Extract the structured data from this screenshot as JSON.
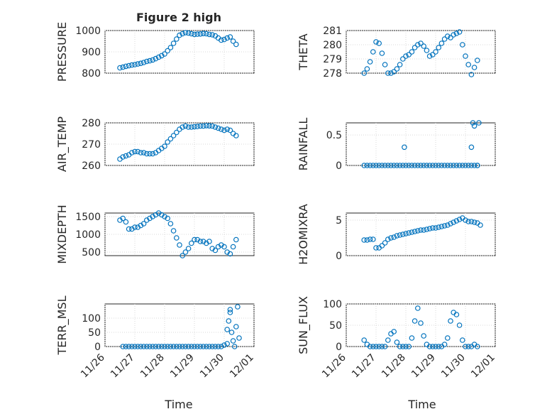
{
  "figure": {
    "title": "Figure 2 high",
    "xlabel": "Time"
  },
  "chart_data": [
    {
      "type": "scatter",
      "ylabel": "PRESSURE",
      "ylim": [
        800,
        1000
      ],
      "yticks": [
        "800",
        "900",
        "1000"
      ],
      "xlim": [
        0,
        5
      ],
      "xticks": [
        "11/26",
        "11/27",
        "11/28",
        "11/29",
        "11/30",
        "12/01"
      ],
      "grid": "on",
      "series": [
        {
          "x": [
            0.5,
            0.6,
            0.7,
            0.8,
            0.9,
            1.0,
            1.1,
            1.2,
            1.3,
            1.4,
            1.5,
            1.6,
            1.7,
            1.8,
            1.9,
            2.0,
            2.1,
            2.2,
            2.3,
            2.4,
            2.5,
            2.6,
            2.7,
            2.8,
            2.9,
            3.0,
            3.1,
            3.2,
            3.3,
            3.4,
            3.5,
            3.6,
            3.7,
            3.8,
            3.9,
            4.0,
            4.1,
            4.2,
            4.3,
            4.4
          ],
          "y": [
            825,
            828,
            832,
            835,
            838,
            840,
            843,
            846,
            850,
            855,
            858,
            862,
            868,
            875,
            882,
            890,
            905,
            920,
            940,
            960,
            978,
            985,
            990,
            988,
            985,
            982,
            983,
            984,
            986,
            985,
            982,
            980,
            975,
            965,
            955,
            958,
            965,
            970,
            950,
            935
          ]
        }
      ]
    },
    {
      "type": "scatter",
      "ylabel": "THETA",
      "ylim": [
        278,
        281
      ],
      "yticks": [
        "278",
        "279",
        "280",
        "281"
      ],
      "xlim": [
        0,
        5
      ],
      "xticks": [
        "11/26",
        "11/27",
        "11/28",
        "11/29",
        "11/30",
        "12/01"
      ],
      "grid": "on",
      "series": [
        {
          "x": [
            0.6,
            0.7,
            0.8,
            0.9,
            1.0,
            1.1,
            1.2,
            1.3,
            1.4,
            1.5,
            1.6,
            1.7,
            1.8,
            1.9,
            2.0,
            2.1,
            2.2,
            2.3,
            2.4,
            2.5,
            2.6,
            2.7,
            2.8,
            2.9,
            3.0,
            3.1,
            3.2,
            3.3,
            3.4,
            3.5,
            3.6,
            3.7,
            3.8,
            3.9,
            4.0,
            4.1,
            4.2,
            4.3,
            4.4
          ],
          "y": [
            278.0,
            278.3,
            278.8,
            279.5,
            280.2,
            280.1,
            279.4,
            278.6,
            278.0,
            278.0,
            278.1,
            278.3,
            278.6,
            279.0,
            279.2,
            279.3,
            279.5,
            279.8,
            280.0,
            280.1,
            279.9,
            279.6,
            279.2,
            279.3,
            279.5,
            279.8,
            280.1,
            280.4,
            280.6,
            280.5,
            280.7,
            280.8,
            280.9,
            280.0,
            279.2,
            278.6,
            277.9,
            278.4,
            278.9
          ]
        }
      ]
    },
    {
      "type": "scatter",
      "ylabel": "AIR_TEMP",
      "ylim": [
        260,
        280
      ],
      "yticks": [
        "260",
        "270",
        "280"
      ],
      "xlim": [
        0,
        5
      ],
      "xticks": [
        "11/26",
        "11/27",
        "11/28",
        "11/29",
        "11/30",
        "12/01"
      ],
      "grid": "on",
      "series": [
        {
          "x": [
            0.5,
            0.6,
            0.7,
            0.8,
            0.9,
            1.0,
            1.1,
            1.2,
            1.3,
            1.4,
            1.5,
            1.6,
            1.7,
            1.8,
            1.9,
            2.0,
            2.1,
            2.2,
            2.3,
            2.4,
            2.5,
            2.6,
            2.7,
            2.8,
            2.9,
            3.0,
            3.1,
            3.2,
            3.3,
            3.4,
            3.5,
            3.6,
            3.7,
            3.8,
            3.9,
            4.0,
            4.1,
            4.2,
            4.3,
            4.4
          ],
          "y": [
            263,
            264,
            264.5,
            265,
            266,
            266.5,
            266.5,
            266,
            266,
            265.5,
            265.5,
            265.5,
            266,
            267,
            268,
            269,
            271,
            272.5,
            274,
            275.5,
            277,
            278,
            278.5,
            278,
            278,
            278.2,
            278.3,
            278.5,
            278.5,
            278.7,
            278.6,
            278.5,
            278,
            277.5,
            277,
            276.5,
            277,
            276.5,
            275,
            274
          ]
        }
      ]
    },
    {
      "type": "scatter",
      "ylabel": "RAINFALL",
      "ylim": [
        0,
        0.7
      ],
      "yticks": [
        "0",
        "0.5"
      ],
      "xlim": [
        0,
        5
      ],
      "xticks": [
        "11/26",
        "11/27",
        "11/28",
        "11/29",
        "11/30",
        "12/01"
      ],
      "grid": "on",
      "series": [
        {
          "x": [
            0.6,
            0.7,
            0.8,
            0.9,
            1.0,
            1.1,
            1.2,
            1.3,
            1.4,
            1.5,
            1.6,
            1.7,
            1.8,
            1.9,
            2.0,
            2.1,
            2.2,
            2.3,
            2.4,
            2.5,
            2.6,
            2.7,
            2.8,
            2.9,
            3.0,
            3.1,
            3.2,
            3.3,
            3.4,
            3.5,
            3.6,
            3.7,
            3.8,
            3.9,
            4.0,
            4.1,
            4.2,
            4.3,
            4.4,
            1.95,
            4.2,
            4.25,
            4.3,
            4.45,
            4.4
          ],
          "y": [
            0,
            0,
            0,
            0,
            0,
            0,
            0,
            0,
            0,
            0,
            0,
            0,
            0,
            0,
            0,
            0,
            0,
            0,
            0,
            0,
            0,
            0,
            0,
            0,
            0,
            0,
            0,
            0,
            0,
            0,
            0,
            0,
            0,
            0,
            0,
            0,
            0,
            0,
            0,
            0.3,
            0.3,
            0.7,
            0.65,
            0.7,
            0
          ]
        }
      ]
    },
    {
      "type": "scatter",
      "ylabel": "MIXDEPTH",
      "ylim": [
        400,
        1600
      ],
      "yticks": [
        "500",
        "1000",
        "1500"
      ],
      "xlim": [
        0,
        5
      ],
      "xticks": [
        "11/26",
        "11/27",
        "11/28",
        "11/29",
        "11/30",
        "12/01"
      ],
      "grid": "on",
      "series": [
        {
          "x": [
            0.5,
            0.6,
            0.7,
            0.8,
            0.9,
            1.0,
            1.1,
            1.2,
            1.3,
            1.4,
            1.5,
            1.6,
            1.7,
            1.8,
            1.9,
            2.0,
            2.1,
            2.2,
            2.3,
            2.4,
            2.5,
            2.6,
            2.7,
            2.8,
            2.9,
            3.0,
            3.1,
            3.2,
            3.3,
            3.4,
            3.5,
            3.6,
            3.7,
            3.8,
            3.9,
            4.0,
            4.1,
            4.2,
            4.3,
            4.4
          ],
          "y": [
            1400,
            1450,
            1350,
            1150,
            1150,
            1200,
            1200,
            1250,
            1300,
            1400,
            1450,
            1500,
            1550,
            1600,
            1550,
            1500,
            1450,
            1300,
            1100,
            900,
            700,
            400,
            500,
            600,
            750,
            850,
            850,
            800,
            800,
            750,
            800,
            600,
            550,
            650,
            700,
            650,
            500,
            450,
            650,
            850
          ]
        }
      ]
    },
    {
      "type": "scatter",
      "ylabel": "H2OMIXRA",
      "ylim": [
        0,
        6
      ],
      "yticks": [
        "0",
        "5"
      ],
      "xlim": [
        0,
        5
      ],
      "xticks": [
        "11/26",
        "11/27",
        "11/28",
        "11/29",
        "11/30",
        "12/01"
      ],
      "grid": "on",
      "series": [
        {
          "x": [
            0.6,
            0.7,
            0.8,
            0.9,
            1.0,
            1.1,
            1.2,
            1.3,
            1.4,
            1.5,
            1.6,
            1.7,
            1.8,
            1.9,
            2.0,
            2.1,
            2.2,
            2.3,
            2.4,
            2.5,
            2.6,
            2.7,
            2.8,
            2.9,
            3.0,
            3.1,
            3.2,
            3.3,
            3.4,
            3.5,
            3.6,
            3.7,
            3.8,
            3.9,
            4.0,
            4.1,
            4.2,
            4.3,
            4.4,
            4.5
          ],
          "y": [
            2.2,
            2.2,
            2.3,
            2.3,
            1.1,
            1.1,
            1.4,
            1.8,
            2.3,
            2.5,
            2.6,
            2.8,
            2.9,
            3.0,
            3.1,
            3.2,
            3.3,
            3.4,
            3.5,
            3.6,
            3.6,
            3.7,
            3.8,
            3.9,
            3.9,
            4.0,
            4.1,
            4.2,
            4.3,
            4.5,
            4.7,
            4.9,
            5.1,
            5.3,
            5.0,
            4.8,
            4.8,
            4.7,
            4.6,
            4.3
          ]
        }
      ]
    },
    {
      "type": "scatter",
      "ylabel": "TERR_MSL",
      "ylim": [
        0,
        150
      ],
      "yticks": [
        "0",
        "50",
        "100"
      ],
      "xlim": [
        0,
        5
      ],
      "xticks": [
        "11/26",
        "11/27",
        "11/28",
        "11/29",
        "11/30",
        "12/01"
      ],
      "grid": "on",
      "series": [
        {
          "x": [
            0.6,
            0.7,
            0.8,
            0.9,
            1.0,
            1.1,
            1.2,
            1.3,
            1.4,
            1.5,
            1.6,
            1.7,
            1.8,
            1.9,
            2.0,
            2.1,
            2.2,
            2.3,
            2.4,
            2.5,
            2.6,
            2.7,
            2.8,
            2.9,
            3.0,
            3.1,
            3.2,
            3.3,
            3.4,
            3.5,
            3.6,
            3.7,
            3.8,
            3.9,
            4.0,
            4.1,
            4.15,
            4.2,
            4.25,
            4.3,
            4.35,
            4.4,
            4.45,
            4.5,
            4.1,
            4.2
          ],
          "y": [
            0,
            0,
            0,
            0,
            0,
            0,
            0,
            0,
            0,
            0,
            0,
            0,
            0,
            0,
            0,
            0,
            0,
            0,
            0,
            0,
            0,
            0,
            0,
            0,
            0,
            0,
            0,
            0,
            0,
            0,
            0,
            0,
            0,
            0,
            5,
            10,
            90,
            130,
            50,
            20,
            0,
            70,
            140,
            30,
            60,
            120
          ]
        }
      ]
    },
    {
      "type": "scatter",
      "ylabel": "SUN_FLUX",
      "ylim": [
        0,
        100
      ],
      "yticks": [
        "0",
        "50",
        "100"
      ],
      "xlim": [
        0,
        5
      ],
      "xticks": [
        "11/26",
        "11/27",
        "11/28",
        "11/29",
        "11/30",
        "12/01"
      ],
      "grid": "on",
      "series": [
        {
          "x": [
            0.6,
            0.7,
            0.8,
            0.9,
            1.0,
            1.1,
            1.2,
            1.3,
            1.4,
            1.5,
            1.6,
            1.7,
            1.8,
            1.9,
            2.0,
            2.1,
            2.2,
            2.3,
            2.4,
            2.5,
            2.6,
            2.7,
            2.8,
            2.9,
            3.0,
            3.1,
            3.2,
            3.3,
            3.4,
            3.5,
            3.6,
            3.7,
            3.8,
            3.9,
            4.0,
            4.1,
            4.2,
            4.3,
            4.4
          ],
          "y": [
            15,
            5,
            0,
            0,
            0,
            0,
            0,
            0,
            15,
            30,
            35,
            10,
            0,
            0,
            0,
            0,
            20,
            60,
            90,
            55,
            25,
            5,
            0,
            0,
            0,
            0,
            0,
            5,
            20,
            60,
            80,
            75,
            50,
            15,
            0,
            0,
            0,
            5,
            0
          ]
        }
      ]
    }
  ]
}
